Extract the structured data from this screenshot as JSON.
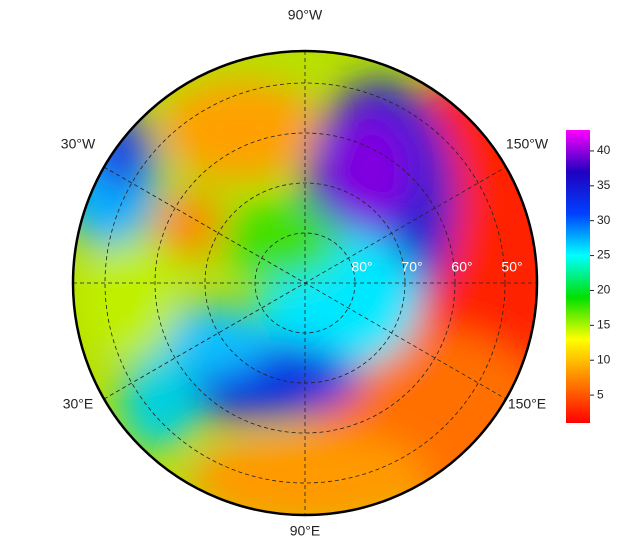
{
  "map": {
    "longitude_labels": {
      "top": "90°W",
      "upper_left": "30°W",
      "upper_right": "150°W",
      "lower_left": "30°E",
      "lower_right": "150°E",
      "bottom": "90°E"
    },
    "latitude_labels": [
      "80°",
      "70°",
      "60°",
      "50°"
    ],
    "colorbar": {
      "lim": [
        1,
        43
      ],
      "ticks": [
        5,
        10,
        15,
        20,
        25,
        30,
        35,
        40
      ],
      "colors": [
        "#ff0000",
        "#ff8000",
        "#ffff00",
        "#00e000",
        "#00ffff",
        "#0040ff",
        "#2000c0",
        "#ff00ff"
      ]
    }
  }
}
